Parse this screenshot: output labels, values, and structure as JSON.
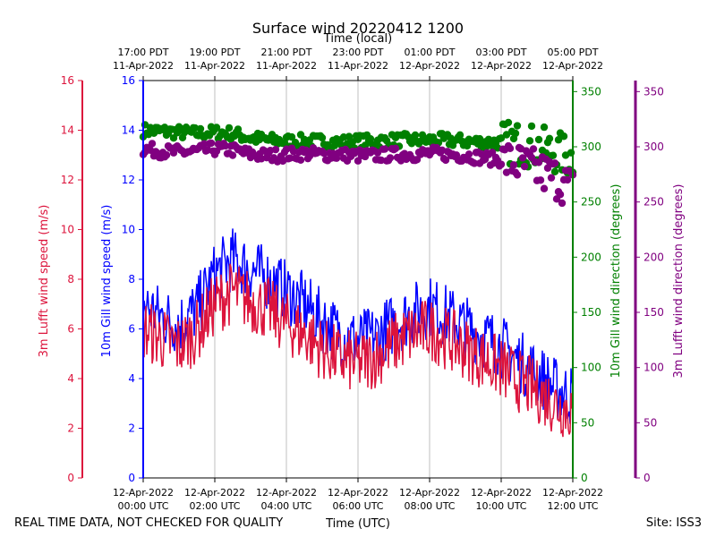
{
  "chart_data": {
    "type": "line",
    "title": "Surface wind 20220412 1200",
    "top_axis_label": "Time (local)",
    "xlabel": "Time (UTC)",
    "footer_left": "REAL TIME DATA, NOT CHECKED FOR QUALITY",
    "footer_right": "Site: ISS3",
    "x_range_hours": [
      0,
      12
    ],
    "bottom_ticks": [
      {
        "hour": 0,
        "date": "12-Apr-2022",
        "time": "00:00 UTC"
      },
      {
        "hour": 2,
        "date": "12-Apr-2022",
        "time": "02:00 UTC"
      },
      {
        "hour": 4,
        "date": "12-Apr-2022",
        "time": "04:00 UTC"
      },
      {
        "hour": 6,
        "date": "12-Apr-2022",
        "time": "06:00 UTC"
      },
      {
        "hour": 8,
        "date": "12-Apr-2022",
        "time": "08:00 UTC"
      },
      {
        "hour": 10,
        "date": "12-Apr-2022",
        "time": "10:00 UTC"
      },
      {
        "hour": 12,
        "date": "12-Apr-2022",
        "time": "12:00 UTC"
      }
    ],
    "top_ticks": [
      {
        "hour": 0,
        "time": "17:00 PDT",
        "date": "11-Apr-2022"
      },
      {
        "hour": 2,
        "time": "19:00 PDT",
        "date": "11-Apr-2022"
      },
      {
        "hour": 4,
        "time": "21:00 PDT",
        "date": "11-Apr-2022"
      },
      {
        "hour": 6,
        "time": "23:00 PDT",
        "date": "11-Apr-2022"
      },
      {
        "hour": 8,
        "time": "01:00 PDT",
        "date": "12-Apr-2022"
      },
      {
        "hour": 10,
        "time": "03:00 PDT",
        "date": "12-Apr-2022"
      },
      {
        "hour": 12,
        "time": "05:00 PDT",
        "date": "12-Apr-2022"
      }
    ],
    "axes": {
      "lufft_speed": {
        "label": "3m Lufft wind speed (m/s)",
        "range": [
          0,
          16
        ],
        "ticks": [
          0,
          2,
          4,
          6,
          8,
          10,
          12,
          14,
          16
        ],
        "color": "#dc143c"
      },
      "gill_speed": {
        "label": "10m Gill wind speed (m/s)",
        "range": [
          0,
          16
        ],
        "ticks": [
          0,
          2,
          4,
          6,
          8,
          10,
          12,
          14,
          16
        ],
        "color": "#0000ff"
      },
      "gill_dir": {
        "label": "10m Gill wind direction (degrees)",
        "range": [
          0,
          360
        ],
        "ticks": [
          0,
          50,
          100,
          150,
          200,
          250,
          300,
          350
        ],
        "color": "#008000"
      },
      "lufft_dir": {
        "label": "3m Lufft wind direction (degrees)",
        "range": [
          0,
          360
        ],
        "ticks": [
          0,
          50,
          100,
          150,
          200,
          250,
          300,
          350
        ],
        "color": "#800080"
      }
    },
    "series": [
      {
        "name": "10m Gill wind speed",
        "kind": "line",
        "axis": "gill_speed",
        "x": [
          0,
          0.5,
          1,
          1.5,
          2,
          2.5,
          3,
          3.5,
          4,
          4.5,
          5,
          5.5,
          6,
          6.5,
          7,
          7.5,
          8,
          8.5,
          9,
          9.5,
          10,
          10.5,
          11,
          11.5,
          12
        ],
        "values": [
          7.0,
          6.5,
          6.2,
          6.8,
          8.2,
          8.8,
          8.4,
          8.0,
          7.5,
          7.0,
          6.3,
          5.8,
          5.5,
          5.7,
          6.2,
          6.6,
          6.9,
          6.5,
          6.1,
          5.7,
          5.3,
          4.7,
          4.2,
          3.6,
          3.3
        ]
      },
      {
        "name": "3m Lufft wind speed",
        "kind": "line",
        "axis": "lufft_speed",
        "x": [
          0,
          0.5,
          1,
          1.5,
          2,
          2.5,
          3,
          3.5,
          4,
          4.5,
          5,
          5.5,
          6,
          6.5,
          7,
          7.5,
          8,
          8.5,
          9,
          9.5,
          10,
          10.5,
          11,
          11.5,
          12
        ],
        "values": [
          6.0,
          5.6,
          5.3,
          5.9,
          7.0,
          7.5,
          7.1,
          6.8,
          6.2,
          5.8,
          5.2,
          4.8,
          4.6,
          4.9,
          5.4,
          5.8,
          6.0,
          5.6,
          5.2,
          4.8,
          4.4,
          3.9,
          3.5,
          3.0,
          2.7
        ]
      },
      {
        "name": "10m Gill wind direction",
        "kind": "scatter",
        "axis": "gill_dir",
        "x": [
          0,
          0.5,
          1,
          1.5,
          2,
          2.5,
          3,
          3.5,
          4,
          4.5,
          5,
          5.5,
          6,
          6.5,
          7,
          7.5,
          8,
          8.5,
          9,
          9.5,
          10,
          10.5,
          11,
          11.5,
          12
        ],
        "values": [
          315,
          314,
          313,
          312,
          313,
          312,
          308,
          306,
          305,
          305,
          305,
          304,
          305,
          305,
          306,
          306,
          306,
          306,
          305,
          304,
          304,
          303,
          300,
          295,
          290
        ]
      },
      {
        "name": "3m Lufft wind direction",
        "kind": "scatter",
        "axis": "lufft_dir",
        "x": [
          0,
          0.5,
          1,
          1.5,
          2,
          2.5,
          3,
          3.5,
          4,
          4.5,
          5,
          5.5,
          6,
          6.5,
          7,
          7.5,
          8,
          8.5,
          9,
          9.5,
          10,
          10.5,
          11,
          11.5,
          12
        ],
        "values": [
          298,
          296,
          295,
          296,
          298,
          297,
          293,
          292,
          293,
          294,
          293,
          293,
          292,
          292,
          293,
          293,
          294,
          293,
          292,
          290,
          288,
          284,
          278,
          272,
          262
        ]
      }
    ],
    "grid": true
  }
}
